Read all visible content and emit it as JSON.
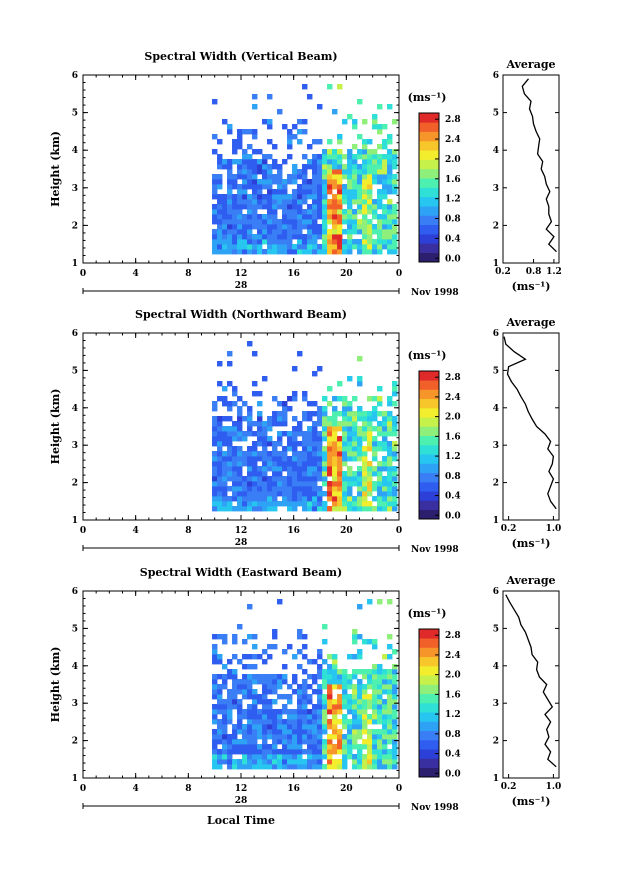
{
  "figure": {
    "date_label": "Nov 1998",
    "day_label": "28",
    "x_axis_label": "Local Time",
    "avg_title": "Average",
    "unit_label": "(ms⁻¹)",
    "colorbar_unit": "(ms⁻¹)",
    "colorbar_ticks": [
      "0.0",
      "0.4",
      "0.8",
      "1.2",
      "1.6",
      "2.0",
      "2.4",
      "2.8"
    ],
    "colormap": [
      "#2b1f6e",
      "#3a2fa0",
      "#2c3fd6",
      "#2e5df0",
      "#3a7ef5",
      "#2ea3f5",
      "#27c6f0",
      "#2ee0d6",
      "#4ef0b0",
      "#8ef07a",
      "#c6f04a",
      "#f2ee2e",
      "#f6c62a",
      "#f6962a",
      "#f2602a",
      "#e02a2a"
    ]
  },
  "chart_data": [
    {
      "type": "heatmap",
      "title": "Spectral Width (Vertical Beam)",
      "xlabel": "",
      "ylabel": "Height (km)",
      "x_ticks": [
        "0",
        "4",
        "8",
        "12",
        "16",
        "20",
        "0"
      ],
      "x_range_hours": [
        0,
        24
      ],
      "y_ticks": [
        "1",
        "2",
        "3",
        "4",
        "5",
        "6"
      ],
      "ylim": [
        1,
        6
      ],
      "z_range": [
        0.0,
        3.0
      ],
      "data_start_hour": 9.8,
      "avg_profile": {
        "title": "Average",
        "xlabel": "(ms⁻¹)",
        "x_ticks": [
          "0.2",
          "0.8",
          "1.2"
        ],
        "xlim": [
          0.2,
          1.3
        ],
        "height_km": [
          1.3,
          1.5,
          1.7,
          1.9,
          2.1,
          2.3,
          2.5,
          2.7,
          2.9,
          3.1,
          3.3,
          3.5,
          3.7,
          3.9,
          4.1,
          4.3,
          4.5,
          4.7,
          4.9,
          5.1,
          5.3,
          5.5,
          5.7,
          5.9
        ],
        "width": [
          1.25,
          1.1,
          1.2,
          1.05,
          1.15,
          1.1,
          1.1,
          1.05,
          1.12,
          1.05,
          1.02,
          0.95,
          0.98,
          0.88,
          0.9,
          0.92,
          0.85,
          0.8,
          0.78,
          0.72,
          0.75,
          0.62,
          0.58,
          0.7
        ]
      }
    },
    {
      "type": "heatmap",
      "title": "Spectral Width (Northward Beam)",
      "xlabel": "",
      "ylabel": "Height (km)",
      "x_ticks": [
        "0",
        "4",
        "8",
        "12",
        "16",
        "20",
        "0"
      ],
      "x_range_hours": [
        0,
        24
      ],
      "y_ticks": [
        "1",
        "2",
        "3",
        "4",
        "5",
        "6"
      ],
      "ylim": [
        1,
        6
      ],
      "z_range": [
        0.0,
        3.0
      ],
      "data_start_hour": 9.8,
      "avg_profile": {
        "title": "Average",
        "xlabel": "(ms⁻¹)",
        "x_ticks": [
          "0.2",
          "1.0"
        ],
        "xlim": [
          0.1,
          1.1
        ],
        "height_km": [
          1.3,
          1.5,
          1.7,
          1.9,
          2.1,
          2.3,
          2.5,
          2.7,
          2.9,
          3.1,
          3.3,
          3.5,
          3.7,
          3.9,
          4.1,
          4.3,
          4.5,
          4.7,
          4.9,
          5.1,
          5.3,
          5.5,
          5.7,
          5.9
        ],
        "width": [
          1.05,
          0.95,
          0.9,
          0.95,
          1.0,
          0.92,
          0.98,
          1.0,
          0.9,
          0.95,
          0.85,
          0.7,
          0.62,
          0.55,
          0.5,
          0.42,
          0.35,
          0.25,
          0.18,
          0.2,
          0.5,
          0.3,
          0.15,
          0.12
        ]
      }
    },
    {
      "type": "heatmap",
      "title": "Spectral Width (Eastward Beam)",
      "xlabel": "Local Time",
      "ylabel": "Height (km)",
      "x_ticks": [
        "0",
        "4",
        "8",
        "12",
        "16",
        "20",
        "0"
      ],
      "x_range_hours": [
        0,
        24
      ],
      "y_ticks": [
        "1",
        "2",
        "3",
        "4",
        "5",
        "6"
      ],
      "ylim": [
        1,
        6
      ],
      "z_range": [
        0.0,
        3.0
      ],
      "data_start_hour": 9.8,
      "avg_profile": {
        "title": "Average",
        "xlabel": "(ms⁻¹)",
        "x_ticks": [
          "0.2",
          "1.0"
        ],
        "xlim": [
          0.1,
          1.1
        ],
        "height_km": [
          1.3,
          1.5,
          1.7,
          1.9,
          2.1,
          2.3,
          2.5,
          2.7,
          2.9,
          3.1,
          3.3,
          3.5,
          3.7,
          3.9,
          4.1,
          4.3,
          4.5,
          4.7,
          4.9,
          5.1,
          5.3,
          5.5,
          5.7,
          5.9
        ],
        "width": [
          1.05,
          0.9,
          0.95,
          0.85,
          0.92,
          0.88,
          0.95,
          0.85,
          0.98,
          0.9,
          0.82,
          0.88,
          0.75,
          0.7,
          0.72,
          0.62,
          0.6,
          0.55,
          0.5,
          0.42,
          0.38,
          0.3,
          0.22,
          0.15
        ]
      }
    }
  ]
}
